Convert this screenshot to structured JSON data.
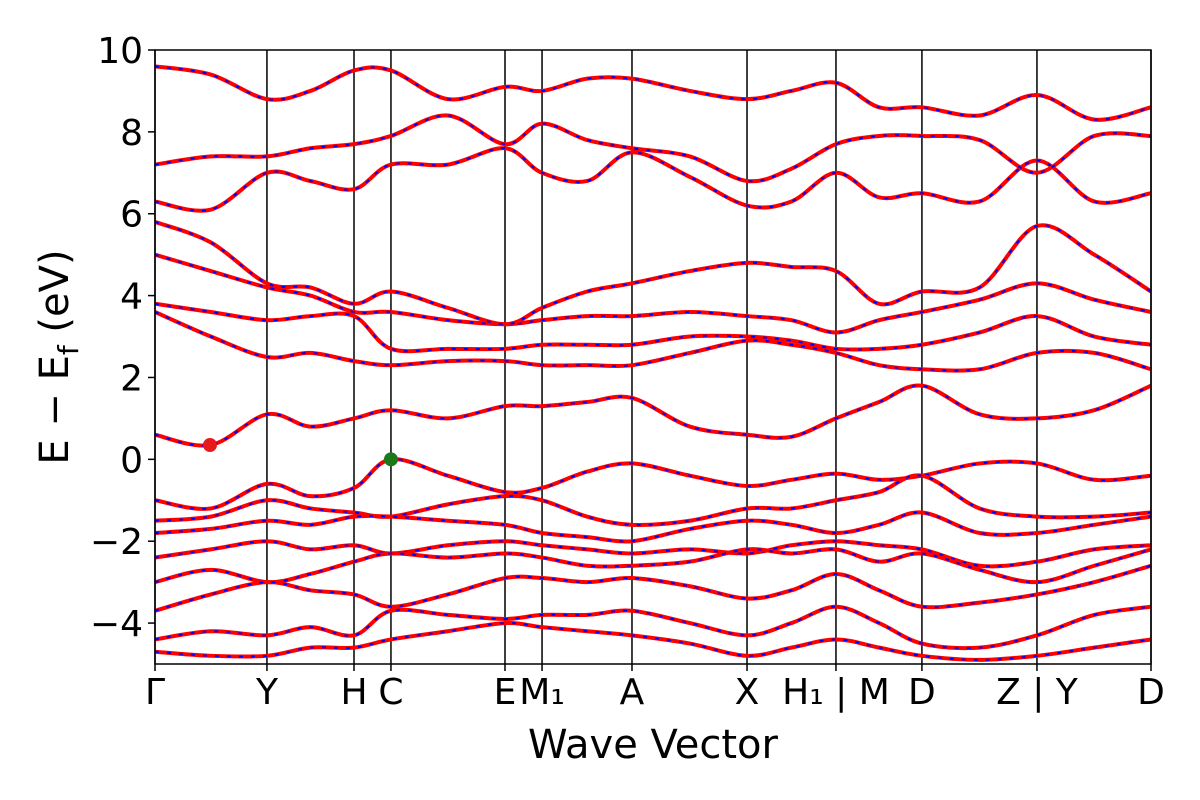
{
  "chart_data": {
    "type": "line",
    "xlabel": "Wave Vector",
    "ylabel": [
      "E − E",
      "f",
      " (eV)"
    ],
    "xlim": [
      0,
      1
    ],
    "ylim": [
      -5,
      10
    ],
    "yticks": [
      {
        "value": -4,
        "label": "−4"
      },
      {
        "value": -2,
        "label": "−2"
      },
      0,
      2,
      4,
      6,
      8,
      10
    ],
    "xticks": [
      {
        "value": 0,
        "label": "Γ"
      },
      {
        "value": 0.1124,
        "label": "Y"
      },
      {
        "value": 0.1998,
        "label": "H"
      },
      {
        "value": 0.2369,
        "label": "C"
      },
      {
        "value": 0.3514,
        "label": "E"
      },
      {
        "value": 0.3886,
        "label": "M₁"
      },
      {
        "value": 0.4789,
        "label": "A"
      },
      {
        "value": 0.5944,
        "label": "X"
      },
      {
        "value": 0.6837,
        "label": "H₁ | M"
      },
      {
        "value": 0.77,
        "label": "D"
      },
      {
        "value": 0.8855,
        "label": "Z | Y"
      },
      {
        "value": 1,
        "label": "D"
      }
    ],
    "grid": "x",
    "color": "#ff0000",
    "dash_color": "#0000ff",
    "x": [
      0,
      0.056,
      0.1124,
      0.156,
      0.1998,
      0.2369,
      0.294,
      0.3514,
      0.3886,
      0.434,
      0.4789,
      0.537,
      0.5944,
      0.639,
      0.6837,
      0.727,
      0.77,
      0.828,
      0.8855,
      0.943,
      1
    ],
    "series": [
      {
        "values": [
          0.6,
          0.35,
          1.1,
          0.8,
          1.0,
          1.2,
          1.0,
          1.3,
          1.3,
          1.4,
          1.5,
          0.8,
          0.6,
          0.55,
          1.0,
          1.4,
          1.8,
          1.1,
          1.0,
          1.2,
          1.8
        ]
      },
      {
        "values": [
          -1.0,
          -1.2,
          -0.6,
          -0.9,
          -0.7,
          0.0,
          -0.4,
          -0.8,
          -0.7,
          -0.3,
          -0.1,
          -0.4,
          -0.65,
          -0.5,
          -0.35,
          -0.5,
          -0.4,
          -0.1,
          -0.1,
          -0.5,
          -0.4
        ]
      },
      {
        "values": [
          -1.5,
          -1.4,
          -1.0,
          -1.2,
          -1.3,
          -1.4,
          -1.1,
          -0.9,
          -1.0,
          -1.4,
          -1.6,
          -1.5,
          -1.2,
          -1.2,
          -1.0,
          -0.8,
          -0.4,
          -1.2,
          -1.4,
          -1.4,
          -1.3
        ]
      },
      {
        "values": [
          -1.8,
          -1.7,
          -1.5,
          -1.6,
          -1.4,
          -1.4,
          -1.5,
          -1.6,
          -1.8,
          -1.9,
          -2.0,
          -1.7,
          -1.5,
          -1.6,
          -1.8,
          -1.6,
          -1.3,
          -1.8,
          -1.8,
          -1.6,
          -1.4
        ]
      },
      {
        "values": [
          -2.4,
          -2.2,
          -2.0,
          -2.2,
          -2.1,
          -2.3,
          -2.1,
          -2.0,
          -2.1,
          -2.2,
          -2.3,
          -2.2,
          -2.3,
          -2.1,
          -2.0,
          -2.1,
          -2.2,
          -2.6,
          -2.5,
          -2.2,
          -2.1
        ]
      },
      {
        "values": [
          -3.0,
          -2.7,
          -3.0,
          -2.8,
          -2.5,
          -2.3,
          -2.4,
          -2.3,
          -2.4,
          -2.6,
          -2.6,
          -2.5,
          -2.2,
          -2.3,
          -2.2,
          -2.5,
          -2.3,
          -2.7,
          -3.0,
          -2.6,
          -2.2
        ]
      },
      {
        "values": [
          -3.7,
          -3.3,
          -3.0,
          -3.2,
          -3.3,
          -3.6,
          -3.3,
          -2.9,
          -2.9,
          -3.0,
          -2.9,
          -3.1,
          -3.4,
          -3.2,
          -2.8,
          -3.2,
          -3.6,
          -3.5,
          -3.3,
          -3.0,
          -2.6
        ]
      },
      {
        "values": [
          -4.4,
          -4.2,
          -4.3,
          -4.1,
          -4.3,
          -3.7,
          -3.8,
          -3.9,
          -3.8,
          -3.8,
          -3.7,
          -4.0,
          -4.3,
          -4.0,
          -3.6,
          -4.0,
          -4.5,
          -4.6,
          -4.3,
          -3.8,
          -3.6
        ]
      },
      {
        "values": [
          -4.7,
          -4.8,
          -4.8,
          -4.6,
          -4.6,
          -4.4,
          -4.2,
          -4.0,
          -4.1,
          -4.2,
          -4.3,
          -4.5,
          -4.8,
          -4.6,
          -4.4,
          -4.6,
          -4.8,
          -4.9,
          -4.8,
          -4.6,
          -4.4
        ]
      },
      {
        "values": [
          3.6,
          3.0,
          2.5,
          2.6,
          2.4,
          2.3,
          2.4,
          2.4,
          2.3,
          2.3,
          2.3,
          2.6,
          2.9,
          2.8,
          2.6,
          2.3,
          2.2,
          2.2,
          2.6,
          2.6,
          2.2
        ]
      },
      {
        "values": [
          3.8,
          3.6,
          3.4,
          3.5,
          3.5,
          2.7,
          2.7,
          2.7,
          2.8,
          2.8,
          2.8,
          3.0,
          3.0,
          2.9,
          2.7,
          2.7,
          2.8,
          3.1,
          3.5,
          3.0,
          2.8
        ]
      },
      {
        "values": [
          5.0,
          4.6,
          4.2,
          4.0,
          3.6,
          3.6,
          3.4,
          3.3,
          3.4,
          3.5,
          3.5,
          3.6,
          3.5,
          3.4,
          3.1,
          3.4,
          3.6,
          3.9,
          4.3,
          3.9,
          3.6
        ]
      },
      {
        "values": [
          5.8,
          5.3,
          4.3,
          4.2,
          3.8,
          4.1,
          3.7,
          3.3,
          3.7,
          4.1,
          4.3,
          4.6,
          4.8,
          4.7,
          4.6,
          3.8,
          4.1,
          4.2,
          5.7,
          5.0,
          4.1
        ]
      },
      {
        "values": [
          6.3,
          6.1,
          7.0,
          6.8,
          6.6,
          7.2,
          7.2,
          7.6,
          7.0,
          6.8,
          7.5,
          6.9,
          6.2,
          6.3,
          7.0,
          6.4,
          6.5,
          6.3,
          7.3,
          6.3,
          6.5
        ]
      },
      {
        "values": [
          7.2,
          7.4,
          7.4,
          7.6,
          7.7,
          7.9,
          8.4,
          7.7,
          8.2,
          7.8,
          7.6,
          7.4,
          6.8,
          7.1,
          7.7,
          7.9,
          7.9,
          7.8,
          7.0,
          7.9,
          7.9
        ]
      },
      {
        "values": [
          9.6,
          9.4,
          8.8,
          9.0,
          9.5,
          9.5,
          8.8,
          9.1,
          9.0,
          9.3,
          9.3,
          9.0,
          8.8,
          9.0,
          9.2,
          8.6,
          8.6,
          8.4,
          8.9,
          8.3,
          8.6
        ]
      }
    ],
    "points": [
      {
        "x": 0.0552,
        "y": 0.35,
        "color": "#e8191a"
      },
      {
        "x": 0.2369,
        "y": 0,
        "color": "#1a7a1a"
      }
    ]
  }
}
